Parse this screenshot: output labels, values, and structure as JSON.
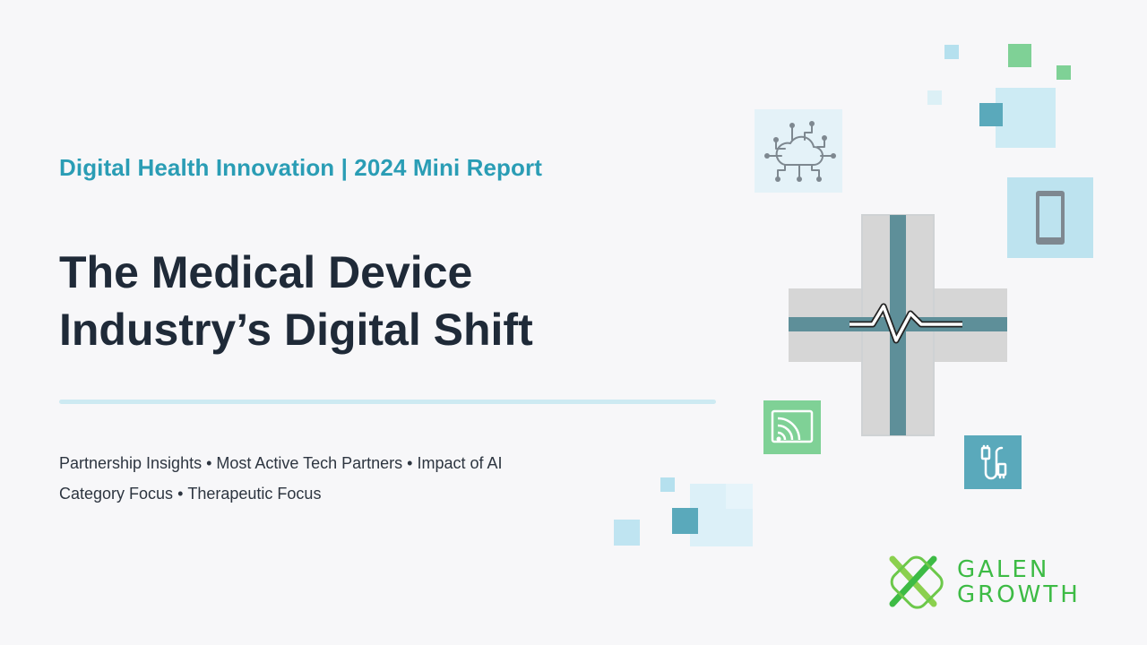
{
  "header": {
    "subtitle": "Digital Health Innovation |  2024 Mini Report"
  },
  "title": {
    "line1": "The Medical Device",
    "line2": "Industry’s Digital Shift"
  },
  "topics": {
    "line1": [
      "Partnership Insights",
      "Most Active Tech Partners",
      "Impact of AI"
    ],
    "line2": [
      "Category Focus",
      "Therapeutic Focus"
    ],
    "separator": "•"
  },
  "icons": {
    "cloud": "cloud-network-icon",
    "phone": "smartphone-icon",
    "wireless": "wireless-screen-icon",
    "cable": "usb-cable-icon",
    "cross": "medical-cross-heartbeat-icon"
  },
  "logo": {
    "line1": "GALEN",
    "line2": "GROWTH"
  },
  "colors": {
    "accent": "#2a9db5",
    "title": "#1f2a38",
    "brand_green": "#3dbb45",
    "light_blue": "#cdeaf2",
    "teal": "#5aa9bb"
  }
}
